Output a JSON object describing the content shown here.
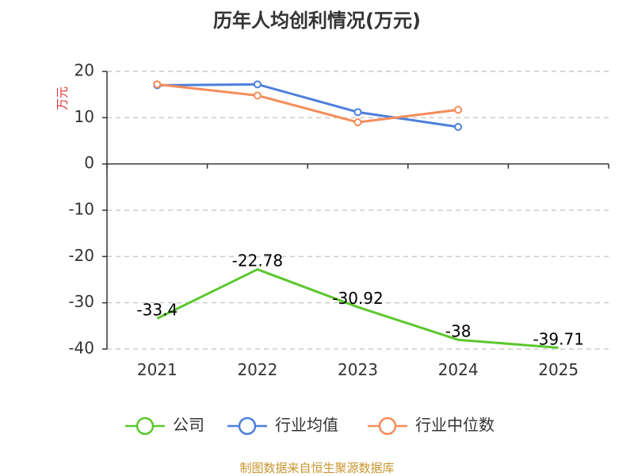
{
  "colors": {
    "company": "#5cc72e",
    "industry_avg": "#4d7fdc",
    "industry_median": "#f78c5a",
    "grid": "#cccccc",
    "axis": "#333333",
    "unit_label": "#e03030",
    "footer": "#c8962e"
  },
  "chart_data": {
    "type": "line",
    "title": "历年人均创利情况(万元)",
    "ylabel": "万元",
    "xlabel": "",
    "categories": [
      "2021",
      "2022",
      "2023",
      "2024",
      "2025"
    ],
    "ylim": [
      -40,
      20
    ],
    "yticks": [
      20,
      10,
      0,
      -10,
      -20,
      -30,
      -40
    ],
    "ytick_labels": [
      "20",
      "10",
      "0",
      "-10",
      "-20",
      "-30",
      "-40"
    ],
    "grid": true,
    "legend_position": "bottom",
    "series": [
      {
        "name": "公司",
        "key": "company",
        "values": [
          -33.4,
          -22.78,
          -30.92,
          -38,
          -39.71
        ],
        "labels": [
          "-33.4",
          "-22.78",
          "-30.92",
          "-38",
          "-39.71"
        ],
        "show_labels": true,
        "show_markers": false
      },
      {
        "name": "行业均值",
        "key": "industry_avg",
        "values": [
          17.0,
          17.2,
          11.2,
          8.0,
          null
        ],
        "show_labels": false,
        "show_markers": true
      },
      {
        "name": "行业中位数",
        "key": "industry_median",
        "values": [
          17.2,
          14.8,
          9.0,
          11.7,
          null
        ],
        "show_labels": false,
        "show_markers": true
      }
    ]
  },
  "footer": {
    "source": "制图数据来自恒生聚源数据库"
  }
}
